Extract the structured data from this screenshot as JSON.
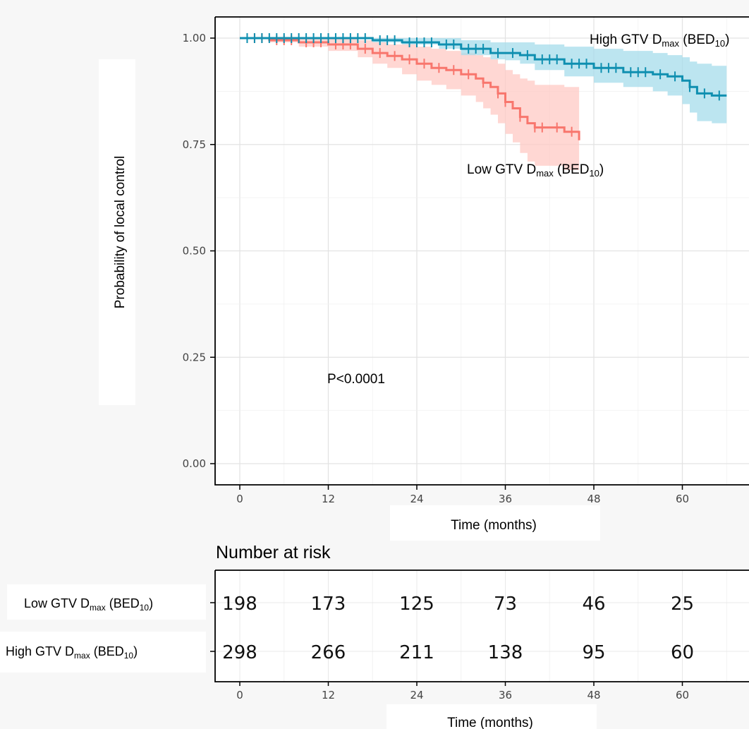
{
  "chart_data": {
    "type": "line",
    "subtype": "kaplan-meier",
    "ylabel": "Probability of local control",
    "xlabel": "Time (months)",
    "xlim": [
      0,
      66
    ],
    "ylim": [
      0,
      1
    ],
    "x_ticks": [
      0,
      12,
      24,
      36,
      48,
      60
    ],
    "y_ticks": [
      0.0,
      0.25,
      0.5,
      0.75,
      1.0
    ],
    "y_tick_labels": [
      "0.00",
      "0.25",
      "0.50",
      "0.75",
      "1.00"
    ],
    "grid": true,
    "annotation": "P<0.0001",
    "series": [
      {
        "name_prefix": "Low GTV D",
        "name_sub": "max",
        "name_mid": " (BED",
        "name_sub2": "10",
        "name_suffix": ")",
        "color": "#f8766d",
        "band_color": "#ffc9c4",
        "x": [
          0,
          4,
          8,
          12,
          16,
          18,
          20,
          22,
          24,
          26,
          28,
          30,
          32,
          33,
          34,
          35,
          36,
          37,
          38,
          39,
          40,
          42,
          44,
          46
        ],
        "y": [
          1.0,
          0.995,
          0.99,
          0.985,
          0.975,
          0.965,
          0.958,
          0.95,
          0.94,
          0.93,
          0.925,
          0.915,
          0.905,
          0.895,
          0.885,
          0.87,
          0.85,
          0.835,
          0.815,
          0.8,
          0.79,
          0.79,
          0.78,
          0.76
        ],
        "lower": [
          1.0,
          0.99,
          0.98,
          0.97,
          0.955,
          0.94,
          0.93,
          0.915,
          0.9,
          0.89,
          0.88,
          0.865,
          0.85,
          0.835,
          0.82,
          0.8,
          0.775,
          0.755,
          0.73,
          0.71,
          0.7,
          0.7,
          0.69,
          0.69
        ],
        "upper": [
          1.0,
          1.0,
          1.0,
          1.0,
          0.995,
          0.99,
          0.985,
          0.985,
          0.98,
          0.975,
          0.97,
          0.965,
          0.96,
          0.955,
          0.95,
          0.94,
          0.925,
          0.915,
          0.905,
          0.9,
          0.89,
          0.89,
          0.885,
          0.885
        ],
        "censor_x": [
          2,
          3,
          5,
          6,
          7,
          9,
          10,
          11,
          13,
          14,
          15,
          17,
          19,
          21,
          23,
          25,
          27,
          29,
          31,
          33,
          35,
          36,
          38,
          40,
          41,
          43,
          45
        ],
        "at_risk": [
          198,
          173,
          125,
          73,
          46,
          25
        ]
      },
      {
        "name_prefix": "High GTV D",
        "name_sub": "max",
        "name_mid": " (BED",
        "name_sub2": "10",
        "name_suffix": ")",
        "color": "#0f8fb0",
        "band_color": "#a6dceb",
        "x": [
          0,
          18,
          22,
          27,
          30,
          34,
          36,
          38,
          40,
          44,
          48,
          52,
          56,
          58,
          60,
          61,
          62,
          64,
          66
        ],
        "y": [
          1.0,
          0.995,
          0.99,
          0.985,
          0.975,
          0.965,
          0.965,
          0.96,
          0.95,
          0.94,
          0.93,
          0.92,
          0.915,
          0.91,
          0.9,
          0.885,
          0.87,
          0.865,
          0.865
        ],
        "lower": [
          1.0,
          0.99,
          0.985,
          0.975,
          0.96,
          0.95,
          0.948,
          0.94,
          0.925,
          0.91,
          0.895,
          0.885,
          0.875,
          0.865,
          0.845,
          0.825,
          0.805,
          0.8,
          0.8
        ],
        "upper": [
          1.0,
          1.0,
          1.0,
          1.0,
          0.995,
          0.99,
          0.99,
          0.99,
          0.985,
          0.98,
          0.975,
          0.97,
          0.965,
          0.96,
          0.955,
          0.945,
          0.94,
          0.935,
          0.935
        ],
        "censor_x": [
          1,
          2,
          3,
          4,
          5,
          6,
          7,
          8,
          9,
          10,
          11,
          12,
          13,
          14,
          15,
          16,
          17,
          19,
          20,
          21,
          23,
          24,
          25,
          26,
          28,
          29,
          31,
          32,
          33,
          35,
          37,
          39,
          41,
          42,
          43,
          45,
          46,
          47,
          49,
          50,
          51,
          53,
          54,
          55,
          57,
          59,
          61,
          63,
          65
        ],
        "at_risk": [
          298,
          266,
          211,
          138,
          95,
          60
        ]
      }
    ],
    "risk_table": {
      "title": "Number at risk",
      "xlabel": "Time (months)",
      "x_ticks": [
        0,
        12,
        24,
        36,
        48,
        60
      ]
    }
  }
}
